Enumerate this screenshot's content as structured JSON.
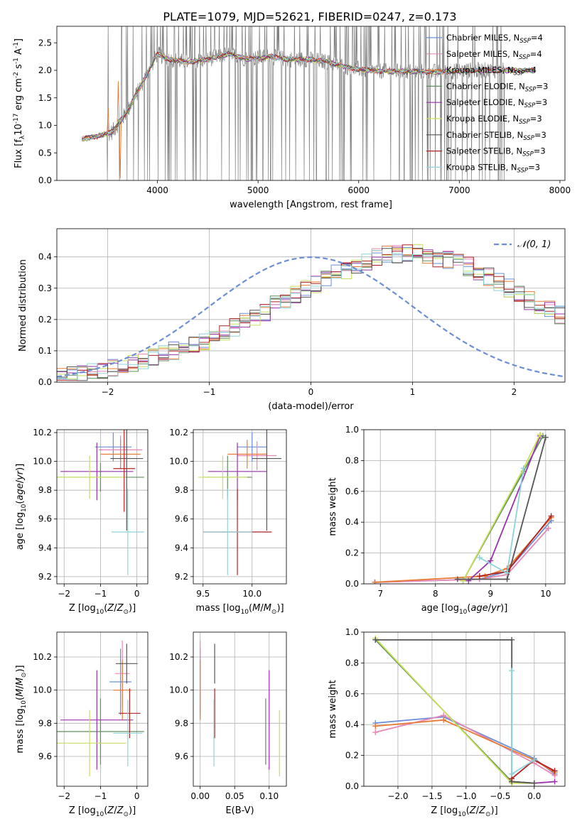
{
  "figure": {
    "title": "PLATE=1079, MJD=52621, FIBERID=0247, z=0.173"
  },
  "colors": {
    "Chabrier MILES": "#6b8fd6",
    "Salpeter MILES": "#e687b8",
    "Kroupa MILES": "#e87a33",
    "Chabrier ELODIE": "#5f8f5f",
    "Salpeter ELODIE": "#9933aa",
    "Kroupa ELODIE": "#c8e05a",
    "Chabrier STELIB": "#555555",
    "Salpeter STELIB": "#b22222",
    "Kroupa STELIB": "#8fd3d8",
    "data": "#808080",
    "normal": "#6b8fd6"
  },
  "chart_data": [
    {
      "id": "spectrum",
      "type": "line",
      "xlabel": "wavelength [Angstrom, rest frame]",
      "ylabel": "Flux [f$_\\lambda$10$^{-17}$ erg cm$^{-2}$ s$^{-1}$ A$^{-1}$]",
      "ylabel_parts": [
        "Flux [f",
        "λ",
        "10",
        "−17",
        " erg cm",
        "−2",
        " s",
        "−1",
        " A",
        "−1",
        "]"
      ],
      "xlim": [
        3000,
        8050
      ],
      "ylim": [
        0,
        2.8
      ],
      "xticks": [
        4000,
        5000,
        6000,
        7000,
        8000
      ],
      "yticks": [
        0.0,
        0.5,
        1.0,
        1.5,
        2.0,
        2.5
      ],
      "legend": [
        {
          "name": "Chabrier MILES",
          "nssp": "4"
        },
        {
          "name": "Salpeter MILES",
          "nssp": "4"
        },
        {
          "name": "Kroupa MILES",
          "nssp": "4"
        },
        {
          "name": "Chabrier ELODIE",
          "nssp": "3"
        },
        {
          "name": "Salpeter ELODIE",
          "nssp": "3"
        },
        {
          "name": "Kroupa ELODIE",
          "nssp": "3"
        },
        {
          "name": "Chabrier STELIB",
          "nssp": "3"
        },
        {
          "name": "Salpeter STELIB",
          "nssp": "3"
        },
        {
          "name": "Kroupa STELIB",
          "nssp": "3"
        }
      ],
      "legend_placement": "upper-right",
      "continuum": {
        "wavelength": [
          3250,
          3400,
          3550,
          3700,
          3800,
          3900,
          4000,
          4100,
          4300,
          4500,
          4700,
          4900,
          5100,
          5300,
          5500,
          5700,
          5900,
          6100,
          6300,
          6500,
          6700,
          6900,
          7100,
          7300,
          7500,
          7700
        ],
        "flux": [
          0.75,
          0.8,
          0.88,
          1.25,
          1.6,
          1.95,
          2.3,
          2.2,
          2.15,
          2.2,
          2.3,
          2.2,
          2.25,
          2.2,
          2.2,
          2.15,
          2.05,
          2.0,
          1.98,
          1.98,
          1.97,
          1.98,
          2.0,
          2.0,
          2.0,
          2.0
        ]
      },
      "data_noisy_from": 3500
    },
    {
      "id": "residuals",
      "type": "histogram",
      "xlabel": "(data-model)/error",
      "ylabel": "Normed distribution",
      "xlim": [
        -2.5,
        2.5
      ],
      "ylim": [
        0,
        0.49
      ],
      "xticks": [
        -2,
        -1,
        0,
        1,
        2
      ],
      "yticks": [
        0.0,
        0.1,
        0.2,
        0.3,
        0.4
      ],
      "grid": true,
      "legend": [
        "𝒩(0, 1)"
      ],
      "legend_placement": "upper-right",
      "bin_width": 0.1,
      "bins_from": -2.5,
      "density": [
        0.02,
        0.02,
        0.025,
        0.03,
        0.035,
        0.045,
        0.05,
        0.06,
        0.07,
        0.08,
        0.09,
        0.1,
        0.105,
        0.12,
        0.13,
        0.15,
        0.16,
        0.175,
        0.195,
        0.21,
        0.225,
        0.25,
        0.265,
        0.28,
        0.3,
        0.31,
        0.33,
        0.345,
        0.36,
        0.37,
        0.385,
        0.4,
        0.405,
        0.41,
        0.415,
        0.41,
        0.4,
        0.395,
        0.39,
        0.38,
        0.37,
        0.355,
        0.335,
        0.32,
        0.3,
        0.28,
        0.26,
        0.245,
        0.23,
        0.215
      ]
    },
    {
      "id": "age-vs-Z",
      "type": "scatter",
      "xlabel": "Z [log$_{10}$($Z$/$Z_\\odot$)]",
      "ylabel": "age  [log$_{10}$($age$/$yr$)]",
      "xlim": [
        -2.2,
        0.3
      ],
      "ylim": [
        9.15,
        10.22
      ],
      "xticks": [
        -2,
        -1,
        0
      ],
      "yticks": [
        9.2,
        9.4,
        9.6,
        9.8,
        10.0,
        10.2
      ],
      "grid": true,
      "points": [
        {
          "model": "Chabrier MILES",
          "x": -0.65,
          "y": 10.1,
          "xerr": 0.5,
          "yerr": 0.1
        },
        {
          "model": "Salpeter MILES",
          "x": -0.45,
          "y": 10.08,
          "xerr": 0.6,
          "yerr": 0.1
        },
        {
          "model": "Kroupa MILES",
          "x": -0.45,
          "y": 10.05,
          "xerr": 0.55,
          "yerr": 0.1
        },
        {
          "model": "Chabrier ELODIE",
          "x": -1.0,
          "y": 9.89,
          "xerr": 1.2,
          "yerr": 0.1
        },
        {
          "model": "Salpeter ELODIE",
          "x": -1.1,
          "y": 9.93,
          "xerr": 1.0,
          "yerr": 0.2
        },
        {
          "model": "Kroupa ELODIE",
          "x": -1.3,
          "y": 9.89,
          "xerr": 1.0,
          "yerr": 0.15
        },
        {
          "model": "Chabrier STELIB",
          "x": -0.28,
          "y": 10.02,
          "xerr": 0.45,
          "yerr": 0.5
        },
        {
          "model": "Salpeter STELIB",
          "x": -0.35,
          "y": 9.95,
          "xerr": 0.3,
          "yerr": 0.3
        },
        {
          "model": "Kroupa STELIB",
          "x": -0.25,
          "y": 9.51,
          "xerr": 0.45,
          "yerr": 0.3
        }
      ]
    },
    {
      "id": "age-vs-mass",
      "type": "scatter",
      "xlabel": "mass [log$_{10}$($M$/$M_\\odot$)]",
      "ylabel": "",
      "xlim": [
        9.4,
        10.35
      ],
      "ylim": [
        9.15,
        10.22
      ],
      "xticks": [
        9.5,
        10.0
      ],
      "yticks": [
        9.2,
        9.4,
        9.6,
        9.8,
        10.0,
        10.2
      ],
      "grid": true,
      "points": [
        {
          "model": "Chabrier MILES",
          "x": 10.0,
          "y": 10.1,
          "xerr": 0.15,
          "yerr": 0.1
        },
        {
          "model": "Salpeter MILES",
          "x": 10.05,
          "y": 10.04,
          "xerr": 0.2,
          "yerr": 0.1
        },
        {
          "model": "Kroupa MILES",
          "x": 9.95,
          "y": 10.05,
          "xerr": 0.2,
          "yerr": 0.1
        },
        {
          "model": "Chabrier ELODIE",
          "x": 9.75,
          "y": 9.89,
          "xerr": 0.25,
          "yerr": 0.15
        },
        {
          "model": "Salpeter ELODIE",
          "x": 9.85,
          "y": 9.93,
          "xerr": 0.3,
          "yerr": 0.2
        },
        {
          "model": "Kroupa ELODIE",
          "x": 9.7,
          "y": 9.89,
          "xerr": 0.25,
          "yerr": 0.15
        },
        {
          "model": "Chabrier STELIB",
          "x": 10.15,
          "y": 10.02,
          "xerr": 0.15,
          "yerr": 0.5
        },
        {
          "model": "Salpeter STELIB",
          "x": 9.85,
          "y": 9.51,
          "xerr": 0.35,
          "yerr": 0.3
        },
        {
          "model": "Kroupa STELIB",
          "x": 9.75,
          "y": 9.51,
          "xerr": 0.25,
          "yerr": 0.3
        }
      ]
    },
    {
      "id": "weight-vs-age",
      "type": "line",
      "xlabel": "age  [log$_{10}$($age$/$yr$)]",
      "ylabel": "mass weight",
      "xlim": [
        6.7,
        10.35
      ],
      "ylim": [
        0,
        1.0
      ],
      "xticks": [
        7,
        8,
        9,
        10
      ],
      "yticks": [
        0.0,
        0.2,
        0.4,
        0.6,
        0.8,
        1.0
      ],
      "grid": true,
      "series": [
        {
          "model": "Chabrier MILES",
          "x": [
            6.9,
            8.8,
            9.3,
            10.1
          ],
          "y": [
            0.01,
            0.03,
            0.08,
            0.41
          ]
        },
        {
          "model": "Salpeter MILES",
          "x": [
            6.9,
            8.8,
            9.3,
            10.05
          ],
          "y": [
            0.01,
            0.03,
            0.06,
            0.36
          ]
        },
        {
          "model": "Kroupa MILES",
          "x": [
            6.9,
            8.9,
            9.3,
            10.1
          ],
          "y": [
            0.01,
            0.05,
            0.1,
            0.43
          ]
        },
        {
          "model": "Chabrier ELODIE",
          "x": [
            8.5,
            9.6,
            9.95
          ],
          "y": [
            0.02,
            0.73,
            0.96
          ]
        },
        {
          "model": "Salpeter ELODIE",
          "x": [
            8.6,
            9.0,
            9.9
          ],
          "y": [
            0.02,
            0.15,
            0.96
          ]
        },
        {
          "model": "Kroupa ELODIE",
          "x": [
            8.5,
            9.6,
            9.9
          ],
          "y": [
            0.02,
            0.75,
            0.97
          ]
        },
        {
          "model": "Chabrier STELIB",
          "x": [
            8.4,
            9.3,
            10.0
          ],
          "y": [
            0.03,
            0.03,
            0.95
          ]
        },
        {
          "model": "Salpeter STELIB",
          "x": [
            8.8,
            9.3,
            10.1
          ],
          "y": [
            0.05,
            0.08,
            0.44
          ]
        },
        {
          "model": "Kroupa STELIB",
          "x": [
            8.8,
            9.3,
            9.6
          ],
          "y": [
            0.17,
            0.07,
            0.75
          ]
        }
      ]
    },
    {
      "id": "mass-vs-Z",
      "type": "scatter",
      "xlabel": "Z [log$_{10}$($Z$/$Z_\\odot$)]",
      "ylabel": "mass [log$_{10}$($M$/$M_\\odot$)]",
      "xlim": [
        -2.2,
        0.3
      ],
      "ylim": [
        9.42,
        10.35
      ],
      "xticks": [
        -2,
        -1,
        0
      ],
      "yticks": [
        9.6,
        9.8,
        10.0,
        10.2
      ],
      "grid": true,
      "points": [
        {
          "model": "Chabrier MILES",
          "x": -0.45,
          "y": 10.05,
          "xerr": 0.3,
          "yerr": 0.2
        },
        {
          "model": "Salpeter MILES",
          "x": -0.4,
          "y": 10.1,
          "xerr": 0.2,
          "yerr": 0.2
        },
        {
          "model": "Kroupa MILES",
          "x": -0.4,
          "y": 10.0,
          "xerr": 0.25,
          "yerr": 0.18
        },
        {
          "model": "Chabrier ELODIE",
          "x": -1.0,
          "y": 9.75,
          "xerr": 1.2,
          "yerr": 0.2
        },
        {
          "model": "Salpeter ELODIE",
          "x": -1.1,
          "y": 9.82,
          "xerr": 1.0,
          "yerr": 0.3
        },
        {
          "model": "Kroupa ELODIE",
          "x": -1.3,
          "y": 9.68,
          "xerr": 1.0,
          "yerr": 0.2
        },
        {
          "model": "Chabrier STELIB",
          "x": -0.28,
          "y": 10.16,
          "xerr": 0.3,
          "yerr": 0.12
        },
        {
          "model": "Salpeter STELIB",
          "x": -0.2,
          "y": 9.86,
          "xerr": 0.3,
          "yerr": 0.15
        },
        {
          "model": "Kroupa STELIB",
          "x": -0.25,
          "y": 9.74,
          "xerr": 0.4,
          "yerr": 0.2
        }
      ]
    },
    {
      "id": "mass-vs-EBV",
      "type": "scatter",
      "xlabel": "E(B-V)",
      "ylabel": "",
      "xlim": [
        -0.01,
        0.125
      ],
      "ylim": [
        9.42,
        10.35
      ],
      "xticks": [
        0.0,
        0.05,
        0.1
      ],
      "yticks": [
        9.6,
        9.8,
        10.0,
        10.2
      ],
      "grid": true,
      "points": [
        {
          "model": "Chabrier MILES",
          "x": 0.0,
          "y": 10.05,
          "yerr": 0.2
        },
        {
          "model": "Salpeter MILES",
          "x": 0.0,
          "y": 10.1,
          "yerr": 0.2
        },
        {
          "model": "Kroupa MILES",
          "x": 0.0,
          "y": 10.0,
          "yerr": 0.18
        },
        {
          "model": "Chabrier ELODIE",
          "x": 0.095,
          "y": 9.75,
          "yerr": 0.2
        },
        {
          "model": "Salpeter ELODIE",
          "x": 0.1,
          "y": 9.82,
          "yerr": 0.3
        },
        {
          "model": "Kroupa ELODIE",
          "x": 0.115,
          "y": 9.68,
          "yerr": 0.2
        },
        {
          "model": "Chabrier STELIB",
          "x": 0.021,
          "y": 10.16,
          "yerr": 0.12
        },
        {
          "model": "Salpeter STELIB",
          "x": 0.021,
          "y": 9.86,
          "yerr": 0.15
        },
        {
          "model": "Kroupa STELIB",
          "x": 0.02,
          "y": 9.74,
          "yerr": 0.2
        }
      ]
    },
    {
      "id": "weight-vs-Z",
      "type": "line",
      "xlabel": "Z [log$_{10}$($Z$/$Z_\\odot$)]",
      "ylabel": "mass weight",
      "xlim": [
        -2.5,
        0.45
      ],
      "ylim": [
        0,
        1.0
      ],
      "xticks": [
        -2.0,
        -1.5,
        -1.0,
        -0.5,
        0.0
      ],
      "yticks": [
        0.0,
        0.2,
        0.4,
        0.6,
        0.8,
        1.0
      ],
      "grid": true,
      "series": [
        {
          "model": "Chabrier MILES",
          "x": [
            -2.33,
            -1.33,
            0.0,
            0.3
          ],
          "y": [
            0.41,
            0.45,
            0.18,
            0.08
          ]
        },
        {
          "model": "Salpeter MILES",
          "x": [
            -2.33,
            -1.33,
            0.0,
            0.3
          ],
          "y": [
            0.35,
            0.46,
            0.15,
            0.07
          ]
        },
        {
          "model": "Kroupa MILES",
          "x": [
            -2.33,
            -1.33,
            0.0,
            0.3
          ],
          "y": [
            0.39,
            0.43,
            0.17,
            0.09
          ]
        },
        {
          "model": "Chabrier ELODIE",
          "x": [
            -2.33,
            -0.33,
            0.0
          ],
          "y": [
            0.95,
            0.03,
            0.02
          ]
        },
        {
          "model": "Salpeter ELODIE",
          "x": [
            -0.33,
            0.0,
            0.3
          ],
          "y": [
            0.03,
            0.02,
            0.03
          ]
        },
        {
          "model": "Kroupa ELODIE",
          "x": [
            -2.33,
            -0.33,
            0.0
          ],
          "y": [
            0.96,
            0.02,
            0.02
          ]
        },
        {
          "model": "Chabrier STELIB",
          "x": [
            -2.33,
            -0.33,
            -0.33,
            0.0
          ],
          "y": [
            0.95,
            0.95,
            0.03,
            0.02
          ]
        },
        {
          "model": "Salpeter STELIB",
          "x": [
            -0.33,
            0.0,
            0.3
          ],
          "y": [
            0.05,
            0.17,
            0.1
          ]
        },
        {
          "model": "Kroupa STELIB",
          "x": [
            -0.33,
            -0.33,
            0.0
          ],
          "y": [
            0.75,
            0.08,
            0.17
          ]
        }
      ]
    }
  ]
}
